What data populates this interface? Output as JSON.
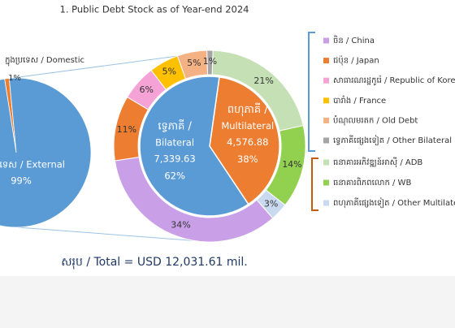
{
  "chart_data": [
    {
      "type": "pie",
      "title": "1. Public Debt Stock as of Year-end 2024",
      "categories": [
        "ក្នុងប្រទេស / Domestic",
        "ក្រៅប្រទេស / External"
      ],
      "values": [
        1,
        99
      ],
      "value_labels": [
        "1%",
        "99%"
      ],
      "colors": [
        "#ed7d31",
        "#5b9bd5"
      ]
    },
    {
      "type": "donut",
      "inner": {
        "labels": [
          [
            "ពហុភាគី /",
            "Multilateral"
          ],
          [
            "ទ្វេភាគី /",
            "Bilateral"
          ]
        ],
        "values": [
          4576.88,
          7339.63
        ],
        "value_labels": [
          "4,576.88",
          "7,339.63"
        ],
        "percents": [
          38,
          62
        ],
        "percent_labels": [
          "38%",
          "62%"
        ],
        "colors": [
          "#ed7d31",
          "#5b9bd5"
        ]
      },
      "outer": {
        "categories": [
          "ធនាគារអភិវឌ្ឍន៍អាស៊ី / ADB",
          "ធនាគារពិភពលោក / WB",
          "ពហុភាគីផ្សេងទៀត / Other Multilateral",
          "ចិន / China",
          "ជប៉ុន / Japan",
          "សាធារណរដ្ឋកូរ៉េ / Republic of Korea",
          "បារាំង / France",
          "បំណុលមរតក / Old Debt",
          "ទ្វេភាគីផ្សេងទៀត / Other Bilateral"
        ],
        "values": [
          21,
          14,
          3,
          34,
          11,
          6,
          5,
          5,
          1
        ],
        "value_labels": [
          "21%",
          "14%",
          "3%",
          "34%",
          "11%",
          "6%",
          "5%",
          "5%",
          "1%"
        ],
        "colors": [
          "#c5e0b4",
          "#92d050",
          "#c9daf0",
          "#c9a0e8",
          "#ed7d31",
          "#f5a3d6",
          "#ffc000",
          "#f4b183",
          "#a5a5a5"
        ]
      },
      "total": "សរុប / Total = USD 12,031.61 mil."
    }
  ]
}
